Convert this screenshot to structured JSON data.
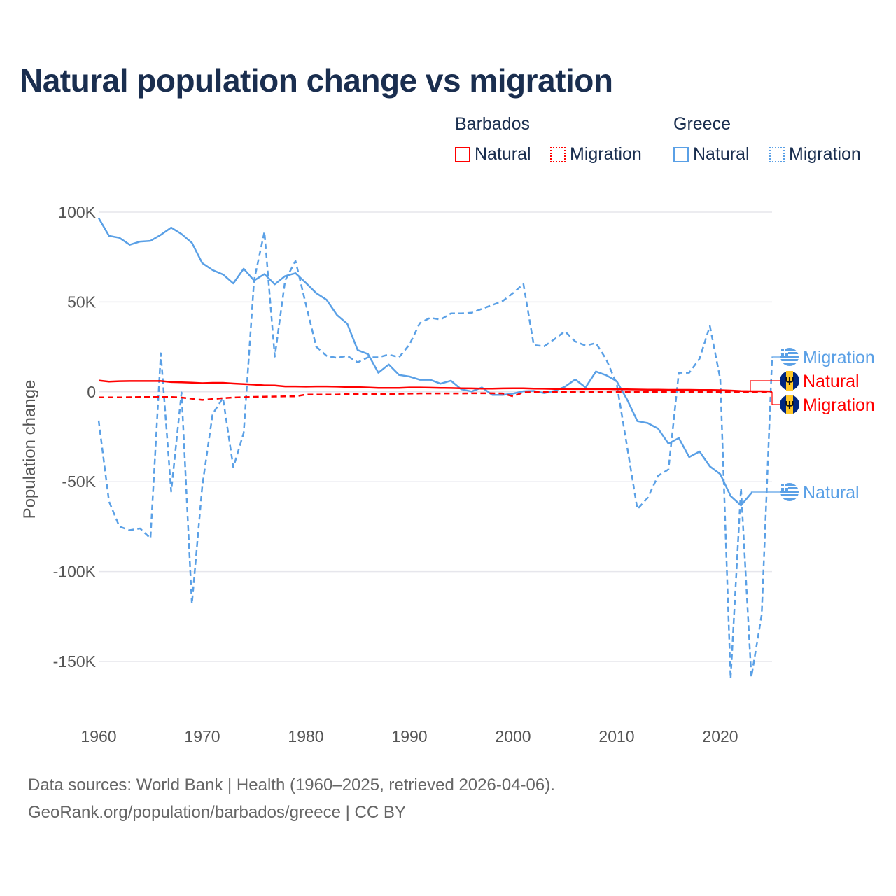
{
  "title": "Natural population change vs migration",
  "legend": {
    "groups": [
      {
        "name": "Barbados",
        "color": "#ff0000",
        "items": [
          "Natural",
          "Migration"
        ]
      },
      {
        "name": "Greece",
        "color": "#5aa0e6",
        "items": [
          "Natural",
          "Migration"
        ]
      }
    ]
  },
  "footer": {
    "line1": "Data sources: World Bank | Health (1960–2025, retrieved 2026-04-06).",
    "line2": "GeoRank.org/population/barbados/greece | CC BY"
  },
  "chart_data": {
    "type": "line",
    "title": "Natural population change vs migration",
    "xlabel": "",
    "ylabel": "Population change",
    "xlim": [
      1960,
      2025
    ],
    "ylim": [
      -150000,
      100000
    ],
    "x_ticks": [
      "1960",
      "1970",
      "1980",
      "1990",
      "2000",
      "2010",
      "2020"
    ],
    "y_ticks": [
      {
        "value": 100000,
        "label": "100K"
      },
      {
        "value": 50000,
        "label": "50K"
      },
      {
        "value": 0,
        "label": "0"
      },
      {
        "value": -50000,
        "label": "-50K"
      },
      {
        "value": -100000,
        "label": "-100K"
      },
      {
        "value": -150000,
        "label": "-150K"
      }
    ],
    "grid": true,
    "legend_position": "top-right",
    "start_year": 1960,
    "series": [
      {
        "name": "Greece Migration",
        "country": "Greece",
        "kind": "Migration",
        "label": "Migration",
        "color": "#5aa0e6",
        "dash": true,
        "values": [
          -16000,
          -61000,
          -75000,
          -77000,
          -76000,
          -81500,
          21400,
          -55500,
          -400,
          -118000,
          -52500,
          -12400,
          -3400,
          -42000,
          -22800,
          62000,
          89000,
          19600,
          62000,
          72800,
          48700,
          25100,
          20000,
          18900,
          20000,
          16400,
          19200,
          19200,
          20700,
          19200,
          26300,
          38200,
          41200,
          40200,
          43600,
          43600,
          44000,
          46200,
          48300,
          50500,
          54900,
          60000,
          26000,
          25300,
          29300,
          33700,
          28000,
          25700,
          27100,
          18000,
          4500,
          -30200,
          -65300,
          -58900,
          -46700,
          -43200,
          10600,
          10600,
          18400,
          36600,
          7100,
          -159600,
          -53600,
          -158700,
          -124000,
          18800
        ]
      },
      {
        "name": "Barbados Natural",
        "country": "Barbados",
        "kind": "Natural",
        "label": "Natural",
        "color": "#ff0000",
        "dash": false,
        "values": [
          6300,
          5700,
          5900,
          6000,
          6000,
          6000,
          6000,
          5400,
          5300,
          5100,
          4800,
          5000,
          5000,
          4600,
          4300,
          4000,
          3600,
          3500,
          3000,
          3000,
          2900,
          3000,
          3000,
          2900,
          2700,
          2600,
          2400,
          2200,
          2200,
          2200,
          2400,
          2400,
          2300,
          2200,
          2100,
          2000,
          1900,
          1800,
          1800,
          1900,
          2000,
          2000,
          1800,
          1700,
          1600,
          1600,
          1500,
          1500,
          1500,
          1500,
          1400,
          1400,
          1300,
          1200,
          1200,
          1100,
          1100,
          1100,
          1000,
          1000,
          900,
          700,
          400,
          300,
          300,
          200
        ]
      },
      {
        "name": "Barbados Migration",
        "country": "Barbados",
        "kind": "Migration",
        "label": "Migration",
        "color": "#ff0000",
        "dash": true,
        "values": [
          -3100,
          -3100,
          -3100,
          -3000,
          -2900,
          -2900,
          -2900,
          -2900,
          -3200,
          -3800,
          -4500,
          -4000,
          -3500,
          -3200,
          -3000,
          -2800,
          -2700,
          -2600,
          -2500,
          -2500,
          -1500,
          -1500,
          -1500,
          -1500,
          -1300,
          -1300,
          -1200,
          -1200,
          -1200,
          -1100,
          -1000,
          -900,
          -900,
          -900,
          -900,
          -900,
          -800,
          -800,
          -800,
          -900,
          -2500,
          -300,
          -200,
          -200,
          -200,
          -200,
          -100,
          -100,
          -100,
          -100,
          0,
          0,
          0,
          0,
          0,
          0,
          0,
          0,
          0,
          0,
          0,
          0,
          0,
          0,
          0,
          0
        ]
      },
      {
        "name": "Greece Natural",
        "country": "Greece",
        "kind": "Natural",
        "label": "Natural",
        "color": "#5aa0e6",
        "dash": false,
        "values": [
          96700,
          86800,
          85700,
          81800,
          83600,
          84000,
          87400,
          91400,
          87800,
          82900,
          71600,
          67700,
          65300,
          60300,
          68500,
          61900,
          65500,
          59800,
          64400,
          66000,
          60600,
          54900,
          51200,
          42700,
          37800,
          23200,
          21000,
          10600,
          15200,
          9400,
          8500,
          6700,
          6700,
          4500,
          6200,
          1400,
          200,
          2400,
          -1700,
          -1700,
          -1000,
          300,
          500,
          -700,
          500,
          2800,
          6900,
          2400,
          11300,
          9200,
          5900,
          -4200,
          -16300,
          -17400,
          -20500,
          -28800,
          -25700,
          -36300,
          -33200,
          -41500,
          -45800,
          -58000,
          -63200,
          -56300
        ]
      }
    ]
  }
}
